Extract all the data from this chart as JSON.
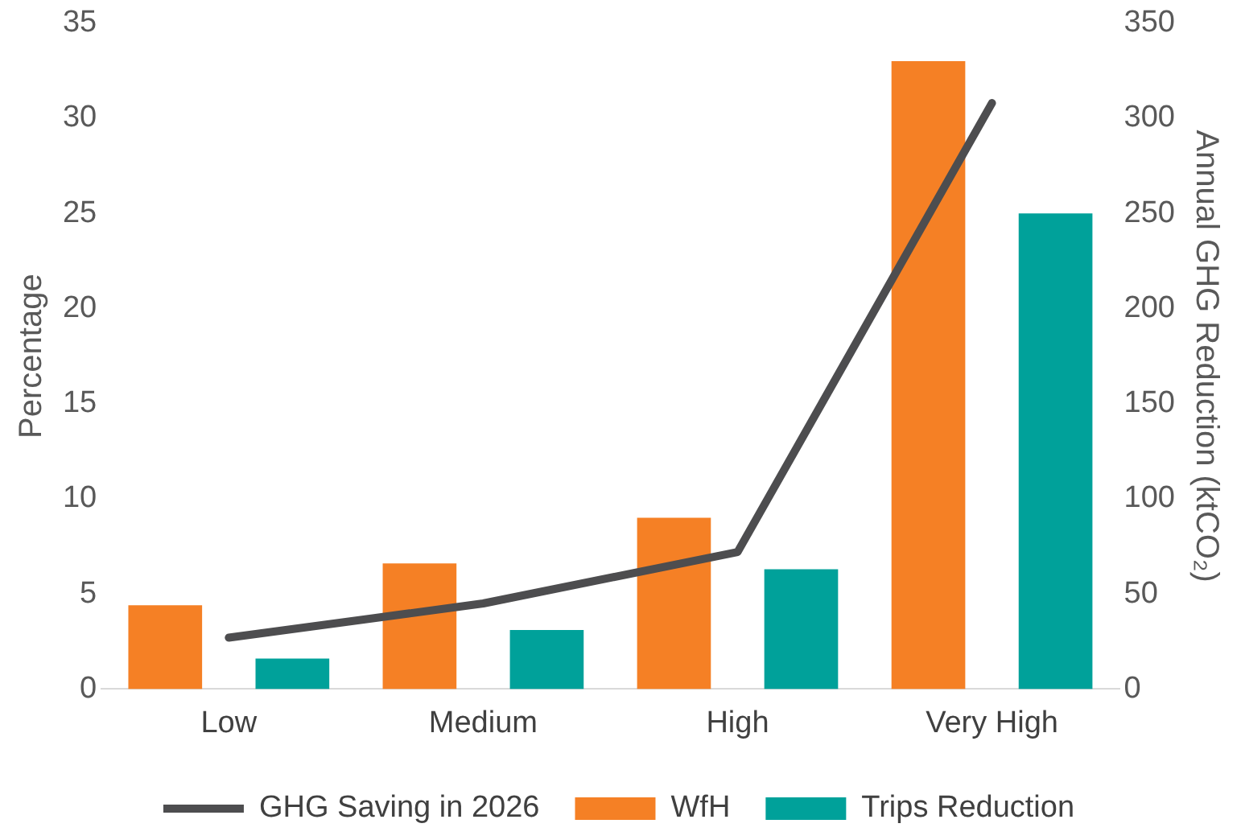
{
  "chart_data": {
    "type": "bar",
    "categories": [
      "Low",
      "Medium",
      "High",
      "Very High"
    ],
    "series": [
      {
        "name": "WfH",
        "color": "#f58025",
        "values": [
          4.4,
          6.6,
          9.0,
          33
        ]
      },
      {
        "name": "Trips Reduction",
        "color": "#00a19a",
        "values": [
          1.6,
          3.1,
          6.3,
          25
        ]
      },
      {
        "name": "GHG Saving in 2026",
        "type": "line",
        "axis": "y2",
        "color": "#4d4d4f",
        "values": [
          27,
          45,
          72,
          308
        ]
      }
    ],
    "ylabel": "Percentage",
    "y2label": "Annual GHG Reduction (ktCO₂)",
    "ylim": [
      0,
      35
    ],
    "yticks": [
      0,
      5,
      10,
      15,
      20,
      25,
      30,
      35
    ],
    "y2lim": [
      0,
      350
    ],
    "y2ticks": [
      0,
      50,
      100,
      150,
      200,
      250,
      300,
      350
    ],
    "grid": false,
    "legend": "bottom",
    "marker": "none",
    "line_style": "solid"
  }
}
